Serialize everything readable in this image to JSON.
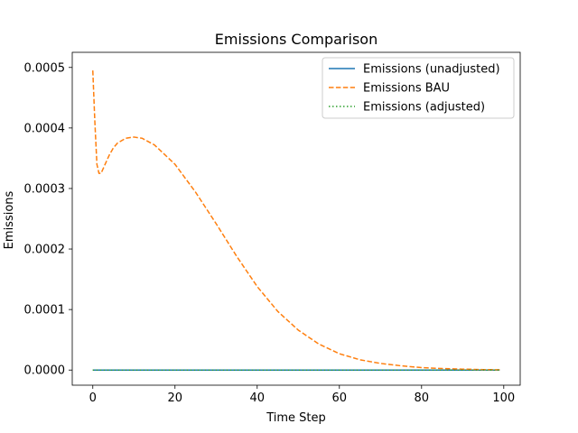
{
  "chart_data": {
    "type": "line",
    "title": "Emissions Comparison",
    "xlabel": "Time Step",
    "ylabel": "Emissions",
    "xlim": [
      -5,
      104
    ],
    "ylim": [
      -2.5e-05,
      0.000525
    ],
    "x_ticks": [
      0,
      20,
      40,
      60,
      80,
      100
    ],
    "y_ticks": [
      0,
      0.0001,
      0.0002,
      0.0003,
      0.0004,
      0.0005
    ],
    "x_tick_labels": [
      "0",
      "20",
      "40",
      "60",
      "80",
      "100"
    ],
    "y_tick_labels": [
      "0.0000",
      "0.0001",
      "0.0002",
      "0.0003",
      "0.0004",
      "0.0005"
    ],
    "grid": false,
    "legend_position": "upper right",
    "series": [
      {
        "name": "Emissions (unadjusted)",
        "color": "#1f77b4",
        "style": "solid",
        "x": [
          0,
          99
        ],
        "y": [
          0,
          0
        ]
      },
      {
        "name": "Emissions BAU",
        "color": "#ff7f0e",
        "style": "dashed",
        "x": [
          0,
          0.5,
          1,
          1.5,
          2,
          3,
          4,
          5,
          6,
          8,
          10,
          12,
          15,
          20,
          25,
          30,
          35,
          40,
          45,
          50,
          55,
          60,
          65,
          70,
          75,
          80,
          85,
          90,
          95,
          99
        ],
        "y": [
          0.000495,
          0.00041,
          0.00034,
          0.000325,
          0.000325,
          0.00034,
          0.000355,
          0.000367,
          0.000375,
          0.000383,
          0.000385,
          0.000383,
          0.000372,
          0.00034,
          0.000294,
          0.000242,
          0.000188,
          0.000138,
          9.7e-05,
          6.6e-05,
          4.3e-05,
          2.7e-05,
          1.7e-05,
          1.1e-05,
          7e-06,
          4e-06,
          2.5e-06,
          1.5e-06,
          8e-07,
          5e-07
        ]
      },
      {
        "name": "Emissions (adjusted)",
        "color": "#2ca02c",
        "style": "dotted",
        "x": [
          0,
          99
        ],
        "y": [
          0,
          0
        ]
      }
    ]
  }
}
